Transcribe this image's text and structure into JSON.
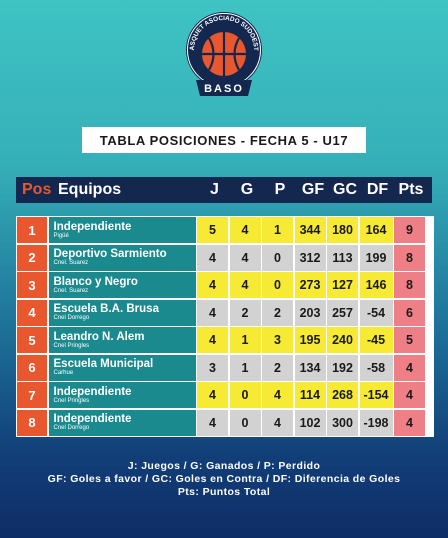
{
  "logo": {
    "top_text": "BASQUET ASOCIADO SUDOESTE",
    "bottom_text": "BASO",
    "colors": {
      "navy": "#14274f",
      "orange": "#e8572e",
      "white": "#ffffff"
    }
  },
  "title": "TABLA POSICIONES - FECHA 5 - U17",
  "header": {
    "pos": "Pos",
    "team": "Equipos",
    "stats": [
      "J",
      "G",
      "P",
      "GF",
      "GC",
      "DF",
      "Pts"
    ]
  },
  "rows": [
    {
      "pos": "1",
      "name": "Independiente",
      "city": "Pigüé",
      "J": "5",
      "G": "4",
      "P": "1",
      "GF": "344",
      "GC": "180",
      "DF": "164",
      "Pts": "9",
      "shade": "yellow"
    },
    {
      "pos": "2",
      "name": "Deportivo Sarmiento",
      "city": "Cnel. Suarez",
      "J": "4",
      "G": "4",
      "P": "0",
      "GF": "312",
      "GC": "113",
      "DF": "199",
      "Pts": "8",
      "shade": "grey"
    },
    {
      "pos": "3",
      "name": "Blanco y Negro",
      "city": "Cnel. Suarez",
      "J": "4",
      "G": "4",
      "P": "0",
      "GF": "273",
      "GC": "127",
      "DF": "146",
      "Pts": "8",
      "shade": "yellow"
    },
    {
      "pos": "4",
      "name": "Escuela B.A. Brusa",
      "city": "Cnel Dorrego",
      "J": "4",
      "G": "2",
      "P": "2",
      "GF": "203",
      "GC": "257",
      "DF": "-54",
      "Pts": "6",
      "shade": "grey"
    },
    {
      "pos": "5",
      "name": "Leandro N. Alem",
      "city": "Cnel Pringles",
      "J": "4",
      "G": "1",
      "P": "3",
      "GF": "195",
      "GC": "240",
      "DF": "-45",
      "Pts": "5",
      "shade": "yellow"
    },
    {
      "pos": "6",
      "name": "Escuela Municipal",
      "city": "Carhue",
      "J": "3",
      "G": "1",
      "P": "2",
      "GF": "134",
      "GC": "192",
      "DF": "-58",
      "Pts": "4",
      "shade": "grey"
    },
    {
      "pos": "7",
      "name": "Independiente",
      "city": "Cnel Pringles",
      "J": "4",
      "G": "0",
      "P": "4",
      "GF": "114",
      "GC": "268",
      "DF": "-154",
      "Pts": "4",
      "shade": "yellow"
    },
    {
      "pos": "8",
      "name": "Independiente",
      "city": "Cnel Dorrego",
      "J": "4",
      "G": "0",
      "P": "4",
      "GF": "102",
      "GC": "300",
      "DF": "-198",
      "Pts": "4",
      "shade": "grey"
    }
  ],
  "legend": [
    "J: Juegos / G: Ganados / P: Perdido",
    "GF: Goles a favor / GC: Goles en Contra / DF: Diferencia de Goles",
    "Pts: Puntos Total"
  ]
}
